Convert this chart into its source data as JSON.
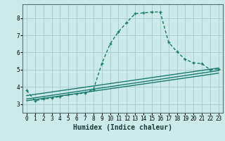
{
  "title": "",
  "xlabel": "Humidex (Indice chaleur)",
  "ylabel": "",
  "background_color": "#cceaea",
  "grid_color": "#aacfcf",
  "line_color": "#1a7a6e",
  "xlim": [
    -0.5,
    23.5
  ],
  "ylim": [
    2.5,
    8.8
  ],
  "yticks": [
    3,
    4,
    5,
    6,
    7,
    8
  ],
  "xticks": [
    0,
    1,
    2,
    3,
    4,
    5,
    6,
    7,
    8,
    9,
    10,
    11,
    12,
    13,
    14,
    15,
    16,
    17,
    18,
    19,
    20,
    21,
    22,
    23
  ],
  "series": [
    {
      "x": [
        0,
        1,
        2,
        3,
        4,
        5,
        6,
        7,
        8,
        9,
        10,
        11,
        12,
        13,
        14,
        15,
        16,
        17,
        18,
        19,
        20,
        21,
        22,
        23
      ],
      "y": [
        3.8,
        3.2,
        3.3,
        3.35,
        3.45,
        3.55,
        3.6,
        3.65,
        3.85,
        5.35,
        6.5,
        7.2,
        7.75,
        8.25,
        8.3,
        8.35,
        8.35,
        6.6,
        6.05,
        5.6,
        5.4,
        5.35,
        5.0,
        5.05
      ],
      "style": "dotted",
      "marker": "+"
    },
    {
      "x": [
        0,
        23
      ],
      "y": [
        3.5,
        5.1
      ],
      "style": "solid",
      "marker": null
    },
    {
      "x": [
        0,
        23
      ],
      "y": [
        3.3,
        4.95
      ],
      "style": "solid",
      "marker": null
    },
    {
      "x": [
        0,
        23
      ],
      "y": [
        3.2,
        4.8
      ],
      "style": "solid",
      "marker": null
    }
  ],
  "tick_fontsize": 5.5,
  "xlabel_fontsize": 7,
  "linewidth": 1.0,
  "markersize": 3.5
}
